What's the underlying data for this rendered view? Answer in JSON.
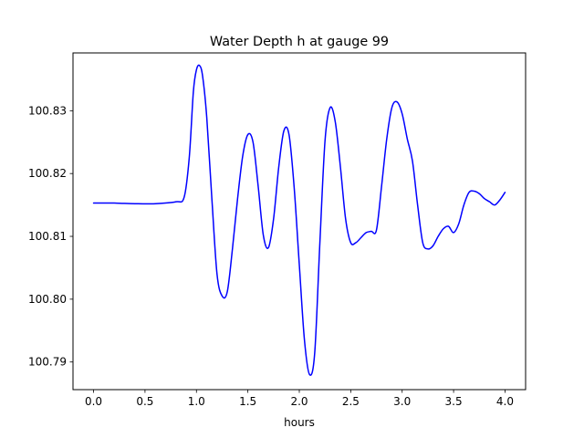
{
  "chart_data": {
    "type": "line",
    "title": "Water Depth h at gauge 99",
    "xlabel": "hours",
    "ylabel": "",
    "xlim": [
      -0.2,
      4.2
    ],
    "ylim": [
      100.7856,
      100.8392
    ],
    "xticks": [
      0.0,
      0.5,
      1.0,
      1.5,
      2.0,
      2.5,
      3.0,
      3.5,
      4.0
    ],
    "xtick_labels": [
      "0.0",
      "0.5",
      "1.0",
      "1.5",
      "2.0",
      "2.5",
      "3.0",
      "3.5",
      "4.0"
    ],
    "yticks": [
      100.79,
      100.8,
      100.81,
      100.82,
      100.83
    ],
    "ytick_labels": [
      "100.79",
      "100.80",
      "100.81",
      "100.82",
      "100.83"
    ],
    "grid": false,
    "series": [
      {
        "color": "#0000ff",
        "x": [
          0.0,
          0.2,
          0.4,
          0.6,
          0.8,
          0.88,
          0.93,
          0.97,
          1.0,
          1.03,
          1.06,
          1.1,
          1.15,
          1.2,
          1.25,
          1.3,
          1.35,
          1.4,
          1.45,
          1.5,
          1.55,
          1.6,
          1.65,
          1.7,
          1.75,
          1.8,
          1.85,
          1.9,
          1.95,
          2.0,
          2.05,
          2.1,
          2.15,
          2.2,
          2.25,
          2.3,
          2.35,
          2.4,
          2.45,
          2.5,
          2.55,
          2.6,
          2.65,
          2.7,
          2.75,
          2.8,
          2.85,
          2.9,
          2.95,
          3.0,
          3.05,
          3.1,
          3.15,
          3.2,
          3.25,
          3.3,
          3.35,
          3.4,
          3.45,
          3.5,
          3.55,
          3.6,
          3.65,
          3.7,
          3.75,
          3.8,
          3.85,
          3.9,
          3.95,
          4.0
        ],
        "values": [
          100.8153,
          100.8153,
          100.8152,
          100.8152,
          100.8155,
          100.8162,
          100.8225,
          100.833,
          100.8365,
          100.8372,
          100.8355,
          100.829,
          100.816,
          100.804,
          100.8005,
          100.8012,
          100.808,
          100.816,
          100.8228,
          100.8262,
          100.825,
          100.818,
          100.8102,
          100.8082,
          100.8128,
          100.821,
          100.8268,
          100.8262,
          100.8178,
          100.8055,
          100.7935,
          100.788,
          100.7915,
          100.809,
          100.8252,
          100.8305,
          100.8282,
          100.821,
          100.8128,
          100.809,
          100.809,
          100.8098,
          100.8106,
          100.8108,
          100.811,
          100.818,
          100.8255,
          100.8305,
          100.8314,
          100.8295,
          100.8255,
          100.822,
          100.815,
          100.809,
          100.808,
          100.8085,
          100.81,
          100.8112,
          100.8116,
          100.8106,
          100.812,
          100.815,
          100.817,
          100.8172,
          100.8168,
          100.816,
          100.8155,
          100.815,
          100.8158,
          100.817
        ]
      }
    ]
  }
}
